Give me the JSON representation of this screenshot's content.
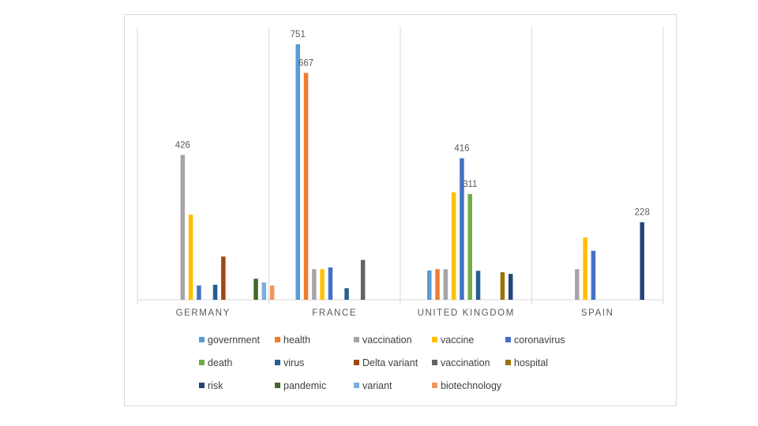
{
  "chart_data": {
    "type": "bar",
    "categories": [
      "GERMANY",
      "FRANCE",
      "UNITED KINGDOM",
      "SPAIN"
    ],
    "ylim": [
      0,
      800
    ],
    "grid": false,
    "legend_position": "bottom",
    "series": [
      {
        "name": "government",
        "color": "#5b9bd5",
        "values": [
          null,
          751,
          86,
          null
        ]
      },
      {
        "name": "health",
        "color": "#ed7d31",
        "values": [
          null,
          667,
          90,
          null
        ]
      },
      {
        "name": "vaccination",
        "color": "#a5a5a5",
        "values": [
          426,
          90,
          90,
          90
        ]
      },
      {
        "name": "vaccine",
        "color": "#ffc000",
        "values": [
          250,
          90,
          316,
          183
        ]
      },
      {
        "name": "coronavirus",
        "color": "#4472c4",
        "values": [
          42,
          95,
          416,
          144
        ]
      },
      {
        "name": "death",
        "color": "#70ad47",
        "values": [
          null,
          null,
          311,
          null
        ]
      },
      {
        "name": "virus",
        "color": "#255e91",
        "values": [
          44,
          34,
          85,
          null
        ]
      },
      {
        "name": "Delta variant",
        "color": "#9e480e",
        "values": [
          127,
          null,
          null,
          null
        ]
      },
      {
        "name": "vaccination",
        "color": "#636363",
        "values": [
          null,
          117,
          null,
          null
        ]
      },
      {
        "name": "hospital",
        "color": "#997300",
        "values": [
          null,
          null,
          81,
          null
        ]
      },
      {
        "name": "risk",
        "color": "#264478",
        "values": [
          null,
          null,
          76,
          228
        ]
      },
      {
        "name": "pandemic",
        "color": "#43682b",
        "values": [
          62,
          null,
          null,
          null
        ]
      },
      {
        "name": "variant",
        "color": "#7cafdd",
        "values": [
          51,
          null,
          null,
          null
        ]
      },
      {
        "name": "biotechnology",
        "color": "#f1975a",
        "values": [
          42,
          null,
          null,
          null
        ]
      }
    ],
    "data_labels": [
      {
        "category": "GERMANY",
        "series": 2,
        "text": "426"
      },
      {
        "category": "FRANCE",
        "series": 0,
        "text": "751"
      },
      {
        "category": "FRANCE",
        "series": 1,
        "text": "667"
      },
      {
        "category": "UNITED KINGDOM",
        "series": 4,
        "text": "416"
      },
      {
        "category": "UNITED KINGDOM",
        "series": 5,
        "text": "311"
      },
      {
        "category": "SPAIN",
        "series": 10,
        "text": "228"
      }
    ]
  }
}
